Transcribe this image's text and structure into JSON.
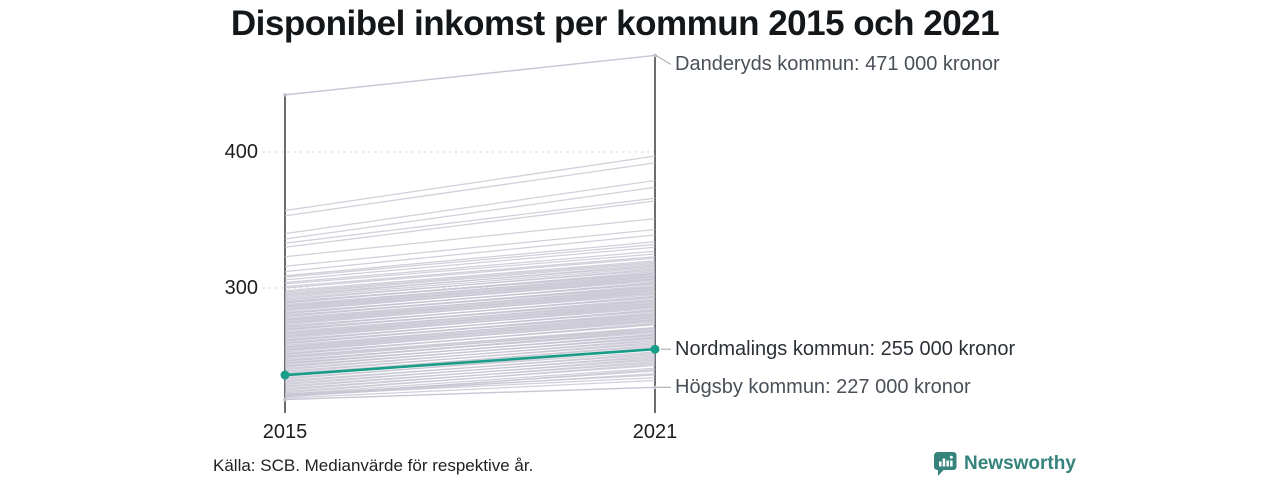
{
  "title": "Disponibel inkomst per kommun 2015 och 2021",
  "footer": {
    "source": "Källa: SCB. Medianvärde för respektive år."
  },
  "brand": {
    "name": "Newsworthy",
    "icon": "speech-bubble-bar-chart",
    "color": "#35837b"
  },
  "chart_data": {
    "type": "line",
    "subtype": "slopegraph",
    "title": "Disponibel inkomst per kommun 2015 och 2021",
    "unit": "tusen kronor (medianvärde per kommun)",
    "x": [
      2015,
      2021
    ],
    "x_labels": [
      "2015",
      "2021"
    ],
    "y_ticks": [
      400,
      300
    ],
    "y_tick_labels": [
      "400",
      "300"
    ],
    "ylim": [
      215,
      475
    ],
    "grid": "dotted-horizontal",
    "legend": "none",
    "highlight_color": "#189e88",
    "line_color": "#c5c3d1",
    "annotated_series": [
      {
        "name": "Danderyds kommun",
        "label": "Danderyds kommun: 471 000 kronor",
        "values": [
          442,
          471
        ],
        "highlighted": false
      },
      {
        "name": "Nordmalings kommun",
        "label": "Nordmalings kommun: 255 000 kronor",
        "values": [
          236,
          255
        ],
        "highlighted": true
      },
      {
        "name": "Högsby kommun",
        "label": "Högsby kommun: 227 000 kronor",
        "values": [
          218,
          227
        ],
        "highlighted": false
      }
    ],
    "background_series": [
      [
        357,
        397
      ],
      [
        353,
        392
      ],
      [
        340,
        379
      ],
      [
        336,
        374
      ],
      [
        333,
        366
      ],
      [
        330,
        364
      ],
      [
        323,
        351
      ],
      [
        316,
        343
      ],
      [
        312,
        339
      ],
      [
        309,
        334
      ],
      [
        308,
        332
      ],
      [
        306,
        330
      ],
      [
        304,
        327
      ],
      [
        303,
        325
      ],
      [
        301,
        323
      ],
      [
        300,
        322
      ],
      [
        298,
        320
      ],
      [
        297,
        319
      ],
      [
        296,
        318
      ],
      [
        295,
        316
      ],
      [
        294,
        317
      ],
      [
        293,
        315
      ],
      [
        292,
        313
      ],
      [
        291,
        314
      ],
      [
        290,
        311
      ],
      [
        289,
        312
      ],
      [
        288,
        309
      ],
      [
        287,
        310
      ],
      [
        286,
        307
      ],
      [
        285,
        308
      ],
      [
        284,
        305
      ],
      [
        283,
        306
      ],
      [
        282,
        303
      ],
      [
        281,
        304
      ],
      [
        280,
        301
      ],
      [
        279,
        302
      ],
      [
        278,
        299
      ],
      [
        277,
        300
      ],
      [
        276,
        297
      ],
      [
        275,
        298
      ],
      [
        274,
        295
      ],
      [
        273,
        296
      ],
      [
        272,
        293
      ],
      [
        271,
        294
      ],
      [
        270,
        291
      ],
      [
        269,
        292
      ],
      [
        268,
        289
      ],
      [
        267,
        290
      ],
      [
        266,
        287
      ],
      [
        265,
        288
      ],
      [
        264,
        285
      ],
      [
        263,
        286
      ],
      [
        262,
        283
      ],
      [
        261,
        284
      ],
      [
        260,
        281
      ],
      [
        259,
        282
      ],
      [
        258,
        279
      ],
      [
        257,
        280
      ],
      [
        256,
        277
      ],
      [
        255,
        278
      ],
      [
        254,
        275
      ],
      [
        253,
        276
      ],
      [
        252,
        273
      ],
      [
        251,
        274
      ],
      [
        250,
        271
      ],
      [
        289.5,
        310.5
      ],
      [
        284.5,
        306.5
      ],
      [
        279.5,
        300.5
      ],
      [
        274.5,
        296.5
      ],
      [
        269.5,
        290.5
      ],
      [
        264.5,
        286.5
      ],
      [
        259.5,
        280.5
      ],
      [
        254.5,
        276.5
      ],
      [
        249.5,
        270.5
      ],
      [
        286.5,
        308.5
      ],
      [
        281.5,
        303.5
      ],
      [
        276.5,
        298.5
      ],
      [
        271.5,
        293.5
      ],
      [
        266.5,
        288.5
      ],
      [
        261.5,
        283.5
      ],
      [
        256.5,
        278.5
      ],
      [
        251.5,
        273.5
      ],
      [
        246.5,
        268.5
      ],
      [
        244.5,
        265.5
      ],
      [
        242.5,
        263.5
      ],
      [
        249,
        269
      ],
      [
        248,
        270
      ],
      [
        247,
        267
      ],
      [
        246,
        268
      ],
      [
        245,
        265
      ],
      [
        244,
        266
      ],
      [
        243,
        263
      ],
      [
        242,
        264
      ],
      [
        241,
        261
      ],
      [
        240,
        262
      ],
      [
        239,
        259
      ],
      [
        238,
        260
      ],
      [
        237,
        257
      ],
      [
        236,
        258
      ],
      [
        235,
        256
      ],
      [
        234,
        253
      ],
      [
        233,
        255
      ],
      [
        232,
        251
      ],
      [
        231,
        252
      ],
      [
        230,
        249
      ],
      [
        229,
        250
      ],
      [
        228,
        247
      ],
      [
        227,
        248
      ],
      [
        226,
        245
      ],
      [
        225,
        246
      ],
      [
        224,
        243
      ],
      [
        223,
        244
      ],
      [
        222,
        241
      ],
      [
        221,
        239
      ],
      [
        220,
        240
      ],
      [
        222,
        236
      ],
      [
        221,
        234
      ],
      [
        220,
        237
      ],
      [
        219,
        232
      ]
    ]
  }
}
